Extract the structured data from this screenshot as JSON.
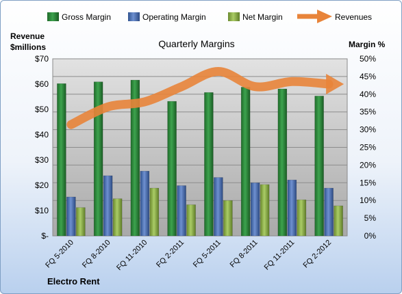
{
  "chart_data": {
    "type": "bar",
    "title": "Quarterly Margins",
    "left_axis_label_line1": "Revenue",
    "left_axis_label_line2": "$millions",
    "right_axis_label": "Margin %",
    "footer": "Electro Rent",
    "categories": [
      "FQ 5-2010",
      "FQ 8-2010",
      "FQ 11-2010",
      "FQ 2-2011",
      "FQ 5-2011",
      "FQ 8-2011",
      "FQ 11-2011",
      "FQ 2-2012"
    ],
    "left_ticks": [
      "$-",
      "$10",
      "$20",
      "$30",
      "$40",
      "$50",
      "$60",
      "$70"
    ],
    "right_ticks": [
      "0%",
      "5%",
      "10%",
      "15%",
      "20%",
      "25%",
      "30%",
      "35%",
      "40%",
      "45%",
      "50%"
    ],
    "ylim_left": [
      0,
      70
    ],
    "ylim_right": [
      0,
      50
    ],
    "series": [
      {
        "name": "Gross Margin",
        "axis": "right",
        "color": "#2e8b3c",
        "values": [
          43.0,
          43.5,
          44.0,
          38.0,
          40.5,
          42.0,
          41.5,
          39.5
        ]
      },
      {
        "name": "Operating Margin",
        "axis": "right",
        "color": "#4f72b8",
        "values": [
          11.0,
          17.0,
          18.3,
          14.2,
          16.5,
          15.0,
          15.8,
          13.5
        ]
      },
      {
        "name": "Net Margin",
        "axis": "right",
        "color": "#8fb34a",
        "values": [
          8.0,
          10.5,
          13.5,
          8.8,
          10.0,
          14.5,
          10.2,
          8.5
        ]
      },
      {
        "name": "Revenues",
        "axis": "left",
        "color": "#e8843a",
        "style": "arrow-line",
        "values": [
          44,
          51,
          53,
          59,
          65,
          59,
          61,
          60
        ]
      }
    ],
    "legend_position": "top",
    "grid": true
  }
}
